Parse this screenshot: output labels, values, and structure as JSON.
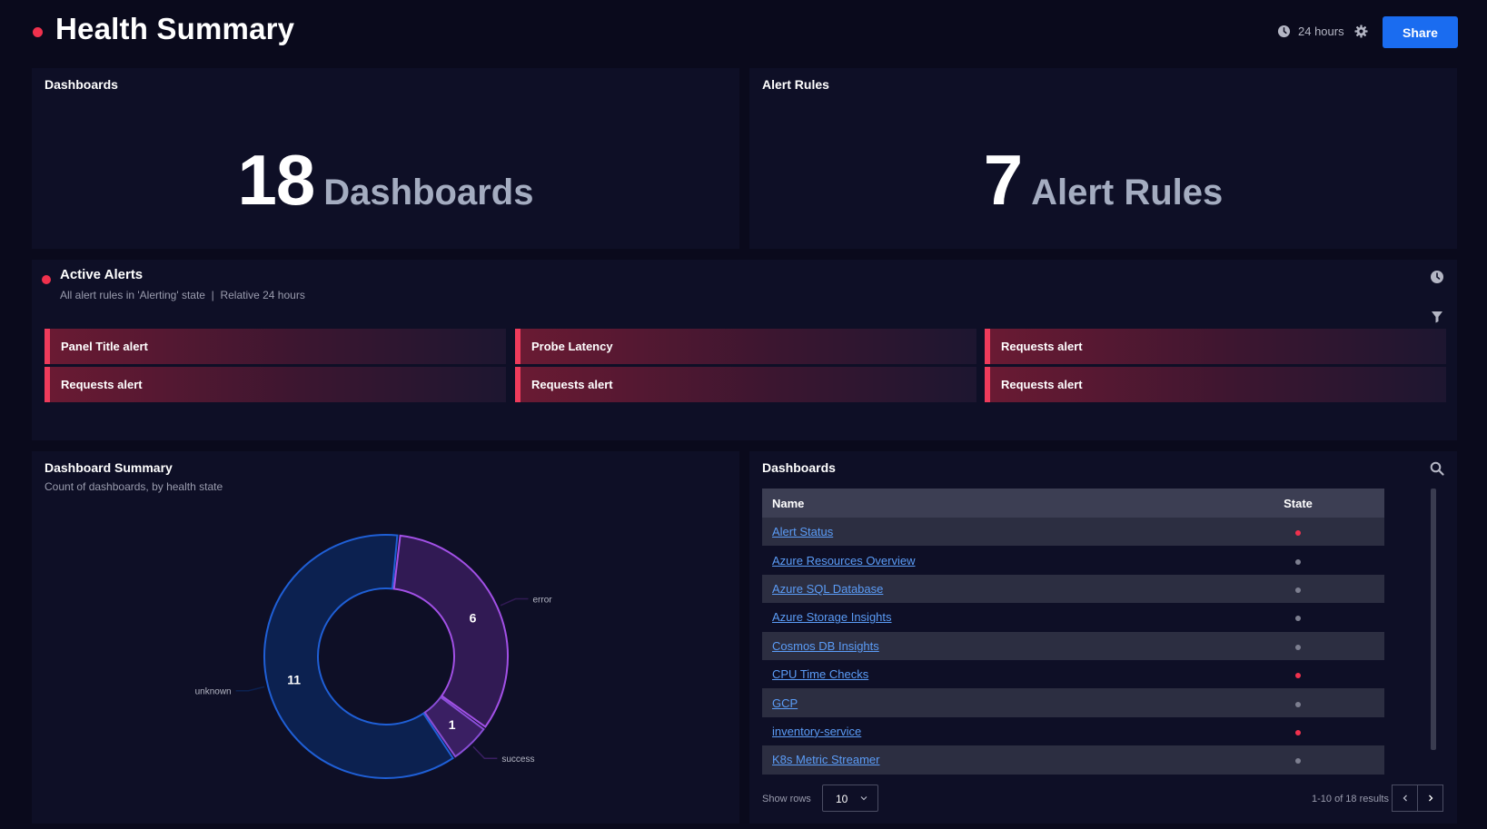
{
  "header": {
    "title": "Health Summary",
    "time_range": "24 hours",
    "share_label": "Share"
  },
  "dashboards_stat": {
    "title": "Dashboards",
    "value": "18",
    "unit": "Dashboards"
  },
  "alert_rules_stat": {
    "title": "Alert Rules",
    "value": "7",
    "unit": "Alert Rules"
  },
  "active_alerts": {
    "title": "Active Alerts",
    "subtitle": "All alert rules in 'Alerting' state  |  Relative 24 hours",
    "alerts": [
      {
        "label": "Panel Title alert"
      },
      {
        "label": "Probe Latency"
      },
      {
        "label": "Requests alert"
      },
      {
        "label": "Requests alert"
      },
      {
        "label": "Requests alert"
      },
      {
        "label": "Requests alert"
      }
    ]
  },
  "dashboard_summary": {
    "title": "Dashboard Summary",
    "subtitle": "Count of dashboards, by health state"
  },
  "chart_data": {
    "type": "pie",
    "subtype": "donut",
    "categories": [
      "unknown",
      "error",
      "success"
    ],
    "values": [
      11,
      6,
      1
    ],
    "colors": [
      "#1f5fd6",
      "#a250e6",
      "#8a4ed8"
    ],
    "fills": [
      "#0c2150",
      "#311a54",
      "#3a1f63"
    ],
    "legend": "labels on slices"
  },
  "dashboards_table": {
    "title": "Dashboards",
    "columns": [
      "Name",
      "State"
    ],
    "rows": [
      {
        "name": "Alert Status",
        "state": "error"
      },
      {
        "name": "Azure Resources Overview",
        "state": "unknown"
      },
      {
        "name": "Azure SQL Database",
        "state": "unknown"
      },
      {
        "name": "Azure Storage Insights",
        "state": "unknown"
      },
      {
        "name": "Cosmos DB Insights",
        "state": "unknown"
      },
      {
        "name": "CPU Time Checks",
        "state": "error"
      },
      {
        "name": "GCP",
        "state": "unknown"
      },
      {
        "name": "inventory-service",
        "state": "error"
      },
      {
        "name": "K8s Metric Streamer",
        "state": "unknown"
      }
    ],
    "state_colors": {
      "error": "#f0314d",
      "unknown": "#7d7f90"
    },
    "show_rows_label": "Show rows",
    "rows_per_page": "10",
    "results_text": "1-10 of 18 results"
  }
}
